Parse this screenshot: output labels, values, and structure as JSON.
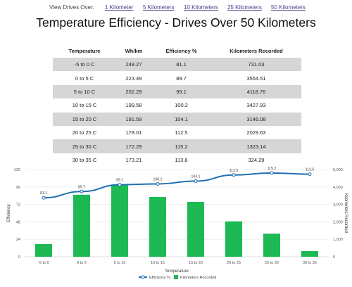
{
  "nav": {
    "label": "View Drives Over:",
    "links": [
      "1 Kilometer",
      "5 Kilometers",
      "10 Kilometers",
      "25 Kilometers",
      "50 Kilometers"
    ]
  },
  "page": {
    "title": "Temperature Efficiency - Drives Over 50 Kilometers"
  },
  "table": {
    "headers": [
      "Temperature",
      "Wh/km",
      "Efficiency %",
      "Kilometers Recorded"
    ],
    "rows": [
      [
        "-5 to 0 C",
        "248.27",
        "81.1",
        "731.03"
      ],
      [
        "0 to 5 C",
        "223.49",
        "89.7",
        "3554.51"
      ],
      [
        "5 to 10 C",
        "202.29",
        "99.1",
        "4118.76"
      ],
      [
        "10 to 15 C",
        "199.58",
        "100.2",
        "3427.93"
      ],
      [
        "15 to 20 C",
        "191.59",
        "104.1",
        "3146.08"
      ],
      [
        "20 to 25 C",
        "178.01",
        "112.5",
        "2029.63"
      ],
      [
        "25 to 30 C",
        "172.29",
        "115.2",
        "1323.14"
      ],
      [
        "30 to 35 C",
        "173.21",
        "113.6",
        "324.29"
      ]
    ]
  },
  "chart_data": {
    "type": "bar",
    "categories": [
      "-5 to 0",
      "0 to 5",
      "5 to 10",
      "10 to 15",
      "15 to 20",
      "20 to 25",
      "25 to 30",
      "30 to 35"
    ],
    "series": [
      {
        "name": "Efficiency %",
        "kind": "line",
        "axis": "left",
        "color": "#1f6fb2",
        "values": [
          81.1,
          89.7,
          99.1,
          100.2,
          104.1,
          112.5,
          115.2,
          113.6
        ]
      },
      {
        "name": "Kilometers Recorded",
        "kind": "bar",
        "axis": "right",
        "color": "#1db954",
        "values": [
          731.03,
          3554.51,
          4118.76,
          3427.93,
          3146.08,
          2029.63,
          1323.14,
          324.29
        ]
      }
    ],
    "xlabel": "Temperature",
    "ylabel_left": "Efficiency",
    "ylabel_right": "Kilometers Recorded",
    "ylim_left": [
      0,
      120
    ],
    "yticks_left": [
      "0",
      "24",
      "48",
      "72",
      "96",
      "120"
    ],
    "ylim_right": [
      0,
      5000
    ],
    "yticks_right": [
      "0",
      "1,000",
      "2,000",
      "3,000",
      "4,000",
      "5,000"
    ],
    "grid": true,
    "legend": "bottom"
  }
}
